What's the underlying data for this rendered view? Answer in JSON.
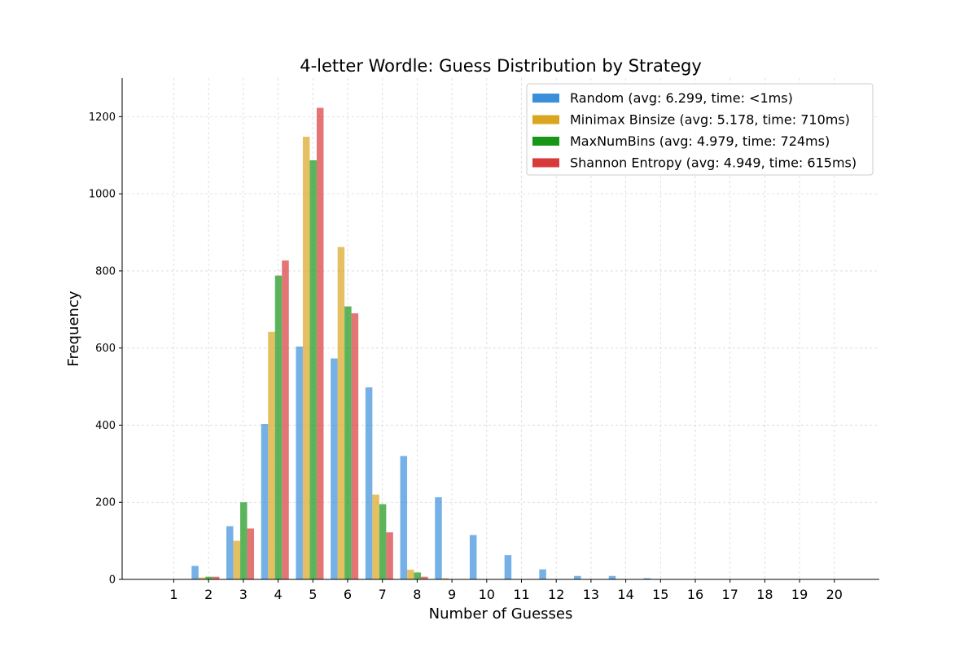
{
  "chart_data": {
    "type": "bar",
    "title": "4-letter Wordle: Guess Distribution by Strategy",
    "xlabel": "Number of Guesses",
    "ylabel": "Frequency",
    "categories": [
      "1",
      "2",
      "3",
      "4",
      "5",
      "6",
      "7",
      "8",
      "9",
      "10",
      "11",
      "12",
      "13",
      "14",
      "15",
      "16",
      "17",
      "18",
      "19",
      "20"
    ],
    "ylim": [
      0,
      1300
    ],
    "yticks": [
      0,
      200,
      400,
      600,
      800,
      1000,
      1200
    ],
    "grid": true,
    "legend_position": "top-right",
    "series": [
      {
        "name": "Random (avg: 6.299, time: <1ms)",
        "color": "#3a8fdb",
        "values": [
          0,
          35,
          138,
          403,
          604,
          573,
          498,
          320,
          213,
          115,
          63,
          26,
          9,
          9,
          3,
          0,
          0,
          0,
          0,
          0
        ]
      },
      {
        "name": "Minimax Binsize (avg: 5.178, time: 710ms)",
        "color": "#daa520",
        "values": [
          0,
          5,
          100,
          642,
          1148,
          862,
          220,
          25,
          3,
          0,
          0,
          0,
          0,
          0,
          0,
          0,
          0,
          0,
          0,
          0
        ]
      },
      {
        "name": "MaxNumBins (avg: 4.979, time: 724ms)",
        "color": "#179617",
        "values": [
          0,
          7,
          200,
          788,
          1087,
          708,
          195,
          18,
          0,
          0,
          0,
          0,
          0,
          0,
          0,
          0,
          0,
          0,
          0,
          0
        ]
      },
      {
        "name": "Shannon Entropy (avg: 4.949, time: 615ms)",
        "color": "#d83a3a",
        "values": [
          0,
          7,
          132,
          827,
          1223,
          690,
          122,
          7,
          0,
          0,
          0,
          0,
          0,
          0,
          0,
          0,
          0,
          0,
          0,
          0
        ]
      }
    ]
  }
}
